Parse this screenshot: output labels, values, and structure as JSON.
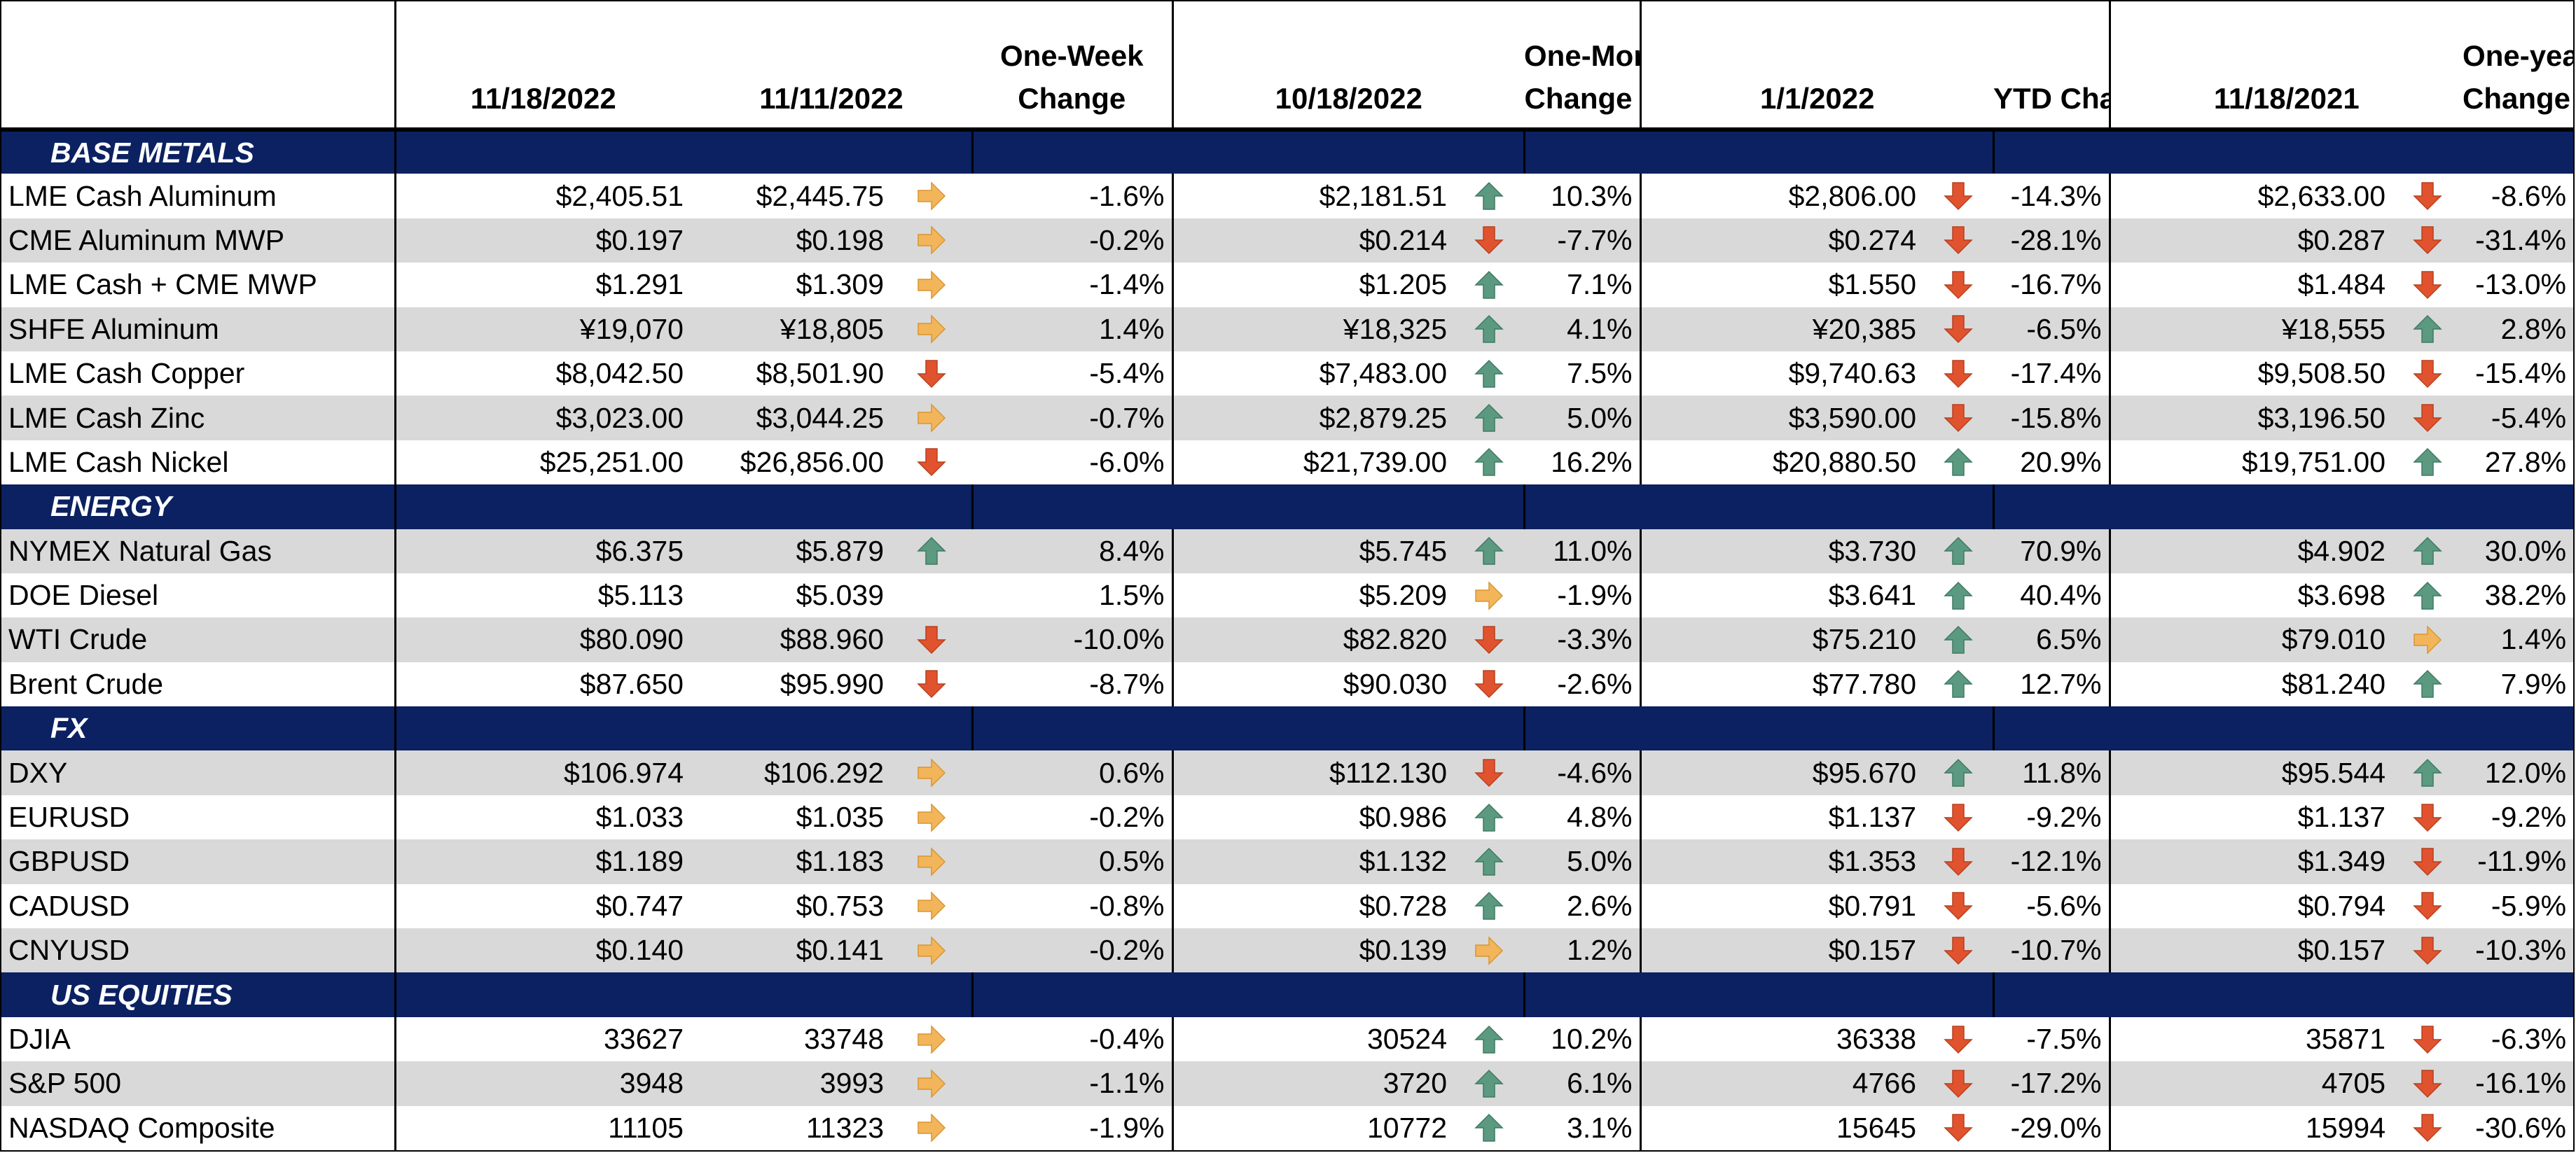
{
  "headers": {
    "groups": [
      {
        "d1": "11/18/2022",
        "d2": "11/11/2022",
        "chg": "One-Week\nChange"
      },
      {
        "d1": "10/18/2022",
        "chg": "One-Month\nChange"
      },
      {
        "d1": "1/1/2022",
        "chg": "YTD Change"
      },
      {
        "d1": "11/18/2021",
        "chg": "One-year\nChange"
      }
    ]
  },
  "colors": {
    "section_bg": "#0b2161",
    "shade": "#d9d9d9",
    "up": "#5b9a80",
    "down": "#e0532e",
    "flat": "#f3b55a"
  },
  "sections": [
    {
      "title": "BASE METALS",
      "rows": [
        {
          "name": "LME Cash Aluminum",
          "current": "$2,405.51",
          "w_prev": "$2,445.75",
          "w_dir": "flat",
          "w_chg": "-1.6%",
          "m_prev": "$2,181.51",
          "m_dir": "up",
          "m_chg": "10.3%",
          "y_prev": "$2,806.00",
          "y_dir": "down",
          "y_chg": "-14.3%",
          "a_prev": "$2,633.00",
          "a_dir": "down",
          "a_chg": "-8.6%"
        },
        {
          "name": "CME Aluminum MWP",
          "current": "$0.197",
          "w_prev": "$0.198",
          "w_dir": "flat",
          "w_chg": "-0.2%",
          "m_prev": "$0.214",
          "m_dir": "down",
          "m_chg": "-7.7%",
          "y_prev": "$0.274",
          "y_dir": "down",
          "y_chg": "-28.1%",
          "a_prev": "$0.287",
          "a_dir": "down",
          "a_chg": "-31.4%"
        },
        {
          "name": "LME Cash + CME MWP",
          "current": "$1.291",
          "w_prev": "$1.309",
          "w_dir": "flat",
          "w_chg": "-1.4%",
          "m_prev": "$1.205",
          "m_dir": "up",
          "m_chg": "7.1%",
          "y_prev": "$1.550",
          "y_dir": "down",
          "y_chg": "-16.7%",
          "a_prev": "$1.484",
          "a_dir": "down",
          "a_chg": "-13.0%"
        },
        {
          "name": "SHFE Aluminum",
          "current": "¥19,070",
          "w_prev": "¥18,805",
          "w_dir": "flat",
          "w_chg": "1.4%",
          "m_prev": "¥18,325",
          "m_dir": "up",
          "m_chg": "4.1%",
          "y_prev": "¥20,385",
          "y_dir": "down",
          "y_chg": "-6.5%",
          "a_prev": "¥18,555",
          "a_dir": "up",
          "a_chg": "2.8%"
        },
        {
          "name": "LME Cash Copper",
          "current": "$8,042.50",
          "w_prev": "$8,501.90",
          "w_dir": "down",
          "w_chg": "-5.4%",
          "m_prev": "$7,483.00",
          "m_dir": "up",
          "m_chg": "7.5%",
          "y_prev": "$9,740.63",
          "y_dir": "down",
          "y_chg": "-17.4%",
          "a_prev": "$9,508.50",
          "a_dir": "down",
          "a_chg": "-15.4%"
        },
        {
          "name": "LME Cash Zinc",
          "current": "$3,023.00",
          "w_prev": "$3,044.25",
          "w_dir": "flat",
          "w_chg": "-0.7%",
          "m_prev": "$2,879.25",
          "m_dir": "up",
          "m_chg": "5.0%",
          "y_prev": "$3,590.00",
          "y_dir": "down",
          "y_chg": "-15.8%",
          "a_prev": "$3,196.50",
          "a_dir": "down",
          "a_chg": "-5.4%"
        },
        {
          "name": "LME Cash Nickel",
          "current": "$25,251.00",
          "w_prev": "$26,856.00",
          "w_dir": "down",
          "w_chg": "-6.0%",
          "m_prev": "$21,739.00",
          "m_dir": "up",
          "m_chg": "16.2%",
          "y_prev": "$20,880.50",
          "y_dir": "up",
          "y_chg": "20.9%",
          "a_prev": "$19,751.00",
          "a_dir": "up",
          "a_chg": "27.8%"
        }
      ]
    },
    {
      "title": "ENERGY",
      "rows": [
        {
          "name": "NYMEX Natural Gas",
          "current": "$6.375",
          "w_prev": "$5.879",
          "w_dir": "up",
          "w_chg": "8.4%",
          "m_prev": "$5.745",
          "m_dir": "up",
          "m_chg": "11.0%",
          "y_prev": "$3.730",
          "y_dir": "up",
          "y_chg": "70.9%",
          "a_prev": "$4.902",
          "a_dir": "up",
          "a_chg": "30.0%"
        },
        {
          "name": "DOE Diesel",
          "current": "$5.113",
          "w_prev": "$5.039",
          "w_dir": "none",
          "w_chg": "1.5%",
          "m_prev": "$5.209",
          "m_dir": "flat",
          "m_chg": "-1.9%",
          "y_prev": "$3.641",
          "y_dir": "up",
          "y_chg": "40.4%",
          "a_prev": "$3.698",
          "a_dir": "up",
          "a_chg": "38.2%"
        },
        {
          "name": "WTI Crude",
          "current": "$80.090",
          "w_prev": "$88.960",
          "w_dir": "down",
          "w_chg": "-10.0%",
          "m_prev": "$82.820",
          "m_dir": "down",
          "m_chg": "-3.3%",
          "y_prev": "$75.210",
          "y_dir": "up",
          "y_chg": "6.5%",
          "a_prev": "$79.010",
          "a_dir": "flat",
          "a_chg": "1.4%"
        },
        {
          "name": "Brent Crude",
          "current": "$87.650",
          "w_prev": "$95.990",
          "w_dir": "down",
          "w_chg": "-8.7%",
          "m_prev": "$90.030",
          "m_dir": "down",
          "m_chg": "-2.6%",
          "y_prev": "$77.780",
          "y_dir": "up",
          "y_chg": "12.7%",
          "a_prev": "$81.240",
          "a_dir": "up",
          "a_chg": "7.9%"
        }
      ]
    },
    {
      "title": "FX",
      "rows": [
        {
          "name": "DXY",
          "current": "$106.974",
          "w_prev": "$106.292",
          "w_dir": "flat",
          "w_chg": "0.6%",
          "m_prev": "$112.130",
          "m_dir": "down",
          "m_chg": "-4.6%",
          "y_prev": "$95.670",
          "y_dir": "up",
          "y_chg": "11.8%",
          "a_prev": "$95.544",
          "a_dir": "up",
          "a_chg": "12.0%"
        },
        {
          "name": "EURUSD",
          "current": "$1.033",
          "w_prev": "$1.035",
          "w_dir": "flat",
          "w_chg": "-0.2%",
          "m_prev": "$0.986",
          "m_dir": "up",
          "m_chg": "4.8%",
          "y_prev": "$1.137",
          "y_dir": "down",
          "y_chg": "-9.2%",
          "a_prev": "$1.137",
          "a_dir": "down",
          "a_chg": "-9.2%"
        },
        {
          "name": "GBPUSD",
          "current": "$1.189",
          "w_prev": "$1.183",
          "w_dir": "flat",
          "w_chg": "0.5%",
          "m_prev": "$1.132",
          "m_dir": "up",
          "m_chg": "5.0%",
          "y_prev": "$1.353",
          "y_dir": "down",
          "y_chg": "-12.1%",
          "a_prev": "$1.349",
          "a_dir": "down",
          "a_chg": "-11.9%"
        },
        {
          "name": "CADUSD",
          "current": "$0.747",
          "w_prev": "$0.753",
          "w_dir": "flat",
          "w_chg": "-0.8%",
          "m_prev": "$0.728",
          "m_dir": "up",
          "m_chg": "2.6%",
          "y_prev": "$0.791",
          "y_dir": "down",
          "y_chg": "-5.6%",
          "a_prev": "$0.794",
          "a_dir": "down",
          "a_chg": "-5.9%"
        },
        {
          "name": "CNYUSD",
          "current": "$0.140",
          "w_prev": "$0.141",
          "w_dir": "flat",
          "w_chg": "-0.2%",
          "m_prev": "$0.139",
          "m_dir": "flat",
          "m_chg": "1.2%",
          "y_prev": "$0.157",
          "y_dir": "down",
          "y_chg": "-10.7%",
          "a_prev": "$0.157",
          "a_dir": "down",
          "a_chg": "-10.3%"
        }
      ]
    },
    {
      "title": "US EQUITIES",
      "rows": [
        {
          "name": "DJIA",
          "current": "33627",
          "w_prev": "33748",
          "w_dir": "flat",
          "w_chg": "-0.4%",
          "m_prev": "30524",
          "m_dir": "up",
          "m_chg": "10.2%",
          "y_prev": "36338",
          "y_dir": "down",
          "y_chg": "-7.5%",
          "a_prev": "35871",
          "a_dir": "down",
          "a_chg": "-6.3%"
        },
        {
          "name": "S&P 500",
          "current": "3948",
          "w_prev": "3993",
          "w_dir": "flat",
          "w_chg": "-1.1%",
          "m_prev": "3720",
          "m_dir": "up",
          "m_chg": "6.1%",
          "y_prev": "4766",
          "y_dir": "down",
          "y_chg": "-17.2%",
          "a_prev": "4705",
          "a_dir": "down",
          "a_chg": "-16.1%"
        },
        {
          "name": "NASDAQ Composite",
          "current": "11105",
          "w_prev": "11323",
          "w_dir": "flat",
          "w_chg": "-1.9%",
          "m_prev": "10772",
          "m_dir": "up",
          "m_chg": "3.1%",
          "y_prev": "15645",
          "y_dir": "down",
          "y_chg": "-29.0%",
          "a_prev": "15994",
          "a_dir": "down",
          "a_chg": "-30.6%"
        }
      ]
    }
  ]
}
